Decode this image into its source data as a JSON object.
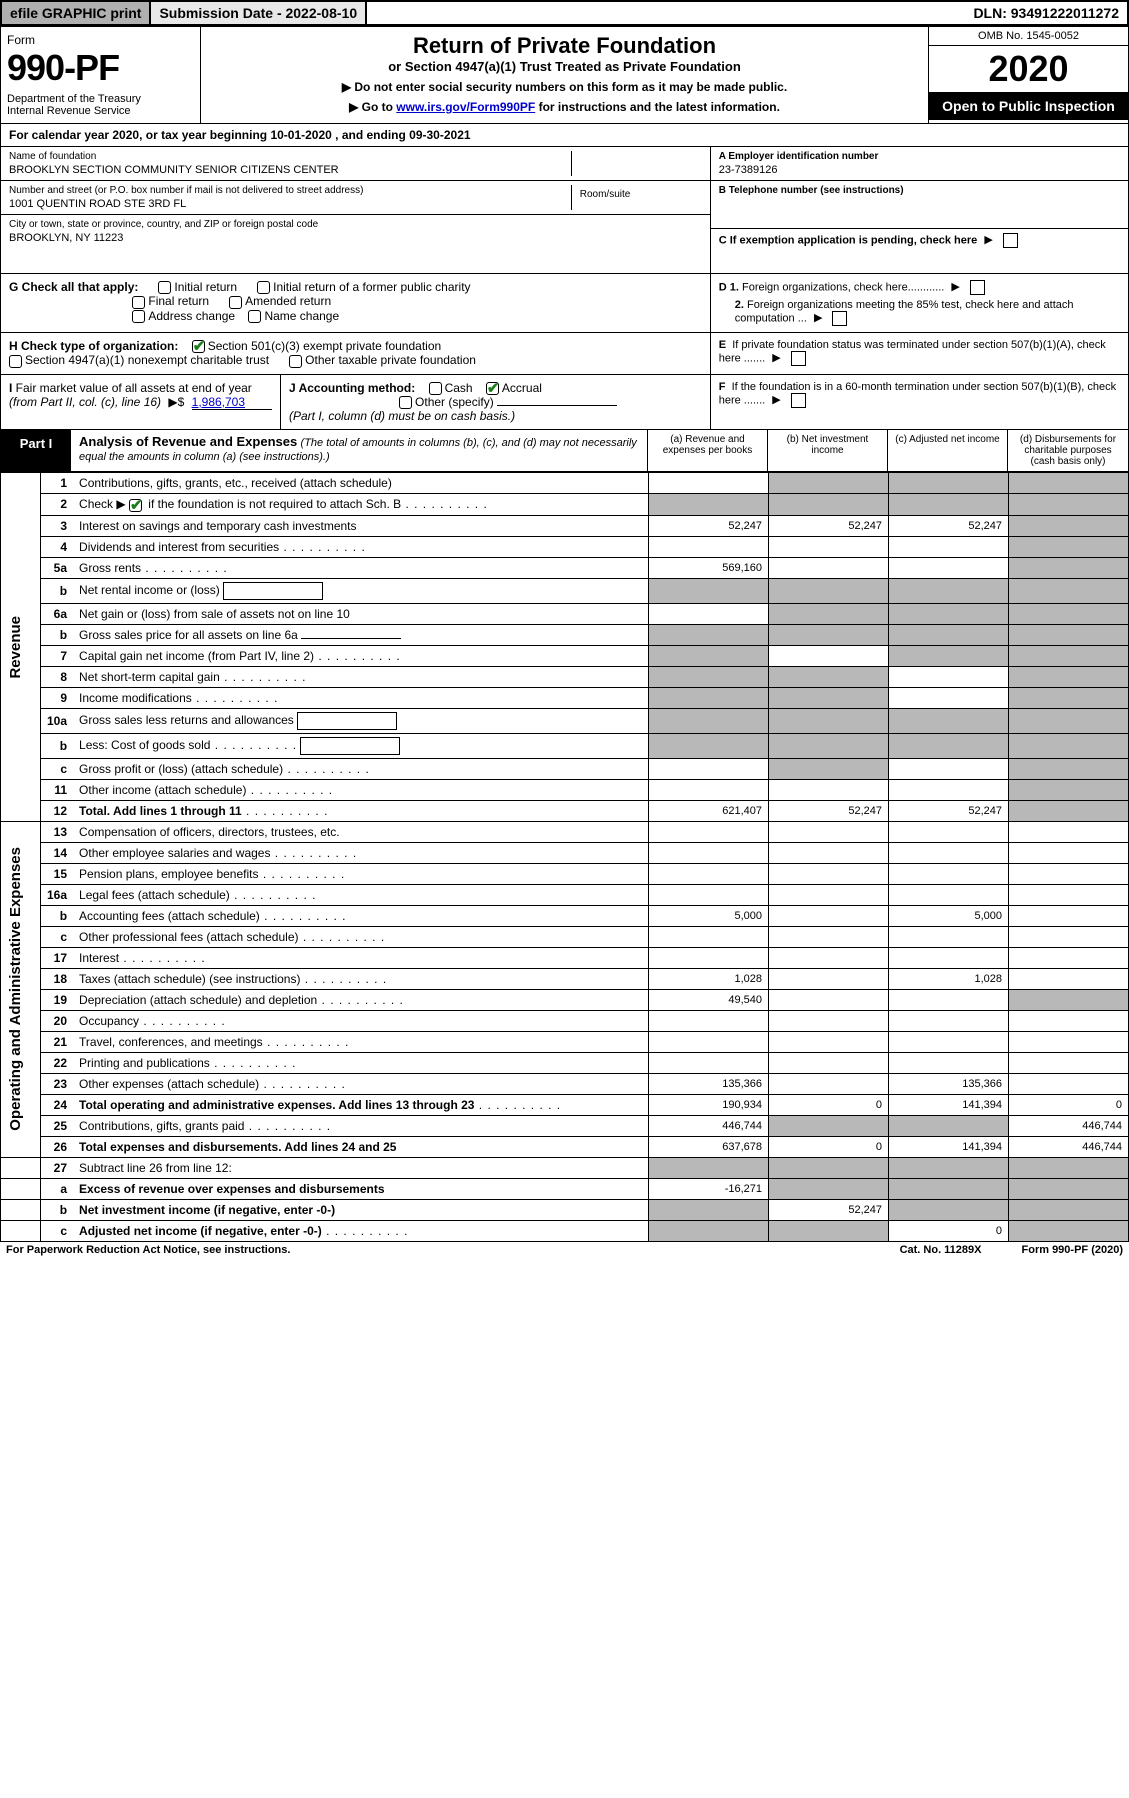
{
  "topbar": {
    "efile": "efile GRAPHIC print",
    "subdate": "Submission Date - 2022-08-10",
    "dln": "DLN: 93491222011272"
  },
  "header": {
    "formword": "Form",
    "formno": "990-PF",
    "dept": "Department of the Treasury\nInternal Revenue Service",
    "title": "Return of Private Foundation",
    "sub1": "or Section 4947(a)(1) Trust Treated as Private Foundation",
    "sub2a": "▶ Do not enter social security numbers on this form as it may be made public.",
    "sub2b": "▶ Go to ",
    "link": "www.irs.gov/Form990PF",
    "sub2c": " for instructions and the latest information.",
    "omb": "OMB No. 1545-0052",
    "year": "2020",
    "open": "Open to Public Inspection"
  },
  "calyear": {
    "text": "For calendar year 2020, or tax year beginning 10-01-2020                          , and ending 09-30-2021"
  },
  "id": {
    "name_lbl": "Name of foundation",
    "name_val": "BROOKLYN SECTION COMMUNITY SENIOR CITIZENS CENTER",
    "addr_lbl": "Number and street (or P.O. box number if mail is not delivered to street address)",
    "addr_val": "1001 QUENTIN ROAD STE 3RD FL",
    "room_lbl": "Room/suite",
    "city_lbl": "City or town, state or province, country, and ZIP or foreign postal code",
    "city_val": "BROOKLYN, NY  11223",
    "ein_lbl": "A Employer identification number",
    "ein_val": "23-7389126",
    "tel_lbl": "B Telephone number (see instructions)",
    "exempt_lbl": "C If exemption application is pending, check here"
  },
  "g": {
    "label": "G Check all that apply:",
    "o1": "Initial return",
    "o2": "Initial return of a former public charity",
    "o3": "Final return",
    "o4": "Amended return",
    "o5": "Address change",
    "o6": "Name change"
  },
  "h": {
    "label": "H Check type of organization:",
    "o1": "Section 501(c)(3) exempt private foundation",
    "o2": "Section 4947(a)(1) nonexempt charitable trust",
    "o3": "Other taxable private foundation"
  },
  "i": {
    "label": "I Fair market value of all assets at end of year (from Part II, col. (c), line 16)",
    "arrow": "▶$",
    "val": "1,986,703"
  },
  "j": {
    "label": "J Accounting method:",
    "cash": "Cash",
    "accrual": "Accrual",
    "other": "Other (specify)",
    "note": "(Part I, column (d) must be on cash basis.)"
  },
  "d": {
    "d1": "D 1. Foreign organizations, check here............",
    "d2": "2. Foreign organizations meeting the 85% test, check here and attach computation ...",
    "e": "E  If private foundation status was terminated under section 507(b)(1)(A), check here .......",
    "f": "F  If the foundation is in a 60-month termination under section 507(b)(1)(B), check here ......."
  },
  "part1": {
    "tab": "Part I",
    "title": "Analysis of Revenue and Expenses",
    "note": "(The total of amounts in columns (b), (c), and (d) may not necessarily equal the amounts in column (a) (see instructions).)",
    "col_a": "(a)    Revenue and expenses per books",
    "col_b": "(b)    Net investment income",
    "col_c": "(c)   Adjusted net income",
    "col_d": "(d)   Disbursements for charitable purposes (cash basis only)"
  },
  "sections": {
    "revenue": "Revenue",
    "opex": "Operating and Administrative Expenses"
  },
  "rows": [
    {
      "sec": "rev",
      "n": "1",
      "d": "Contributions, gifts, grants, etc., received (attach schedule)",
      "a": "",
      "b": "s",
      "c": "s",
      "dd": "s"
    },
    {
      "sec": "rev",
      "n": "2",
      "d": "Check ▶ [x] if the foundation is not required to attach Sch. B",
      "dots": true,
      "a": "s",
      "b": "s",
      "c": "s",
      "dd": "s"
    },
    {
      "sec": "rev",
      "n": "3",
      "d": "Interest on savings and temporary cash investments",
      "a": "52,247",
      "b": "52,247",
      "c": "52,247",
      "dd": "s"
    },
    {
      "sec": "rev",
      "n": "4",
      "d": "Dividends and interest from securities",
      "dots": true,
      "a": "",
      "b": "",
      "c": "",
      "dd": "s"
    },
    {
      "sec": "rev",
      "n": "5a",
      "d": "Gross rents",
      "dots": true,
      "a": "569,160",
      "b": "",
      "c": "",
      "dd": "s"
    },
    {
      "sec": "rev",
      "n": "b",
      "sub": true,
      "d": "Net rental income or (loss)",
      "box": true,
      "a": "s",
      "b": "s",
      "c": "s",
      "dd": "s"
    },
    {
      "sec": "rev",
      "n": "6a",
      "d": "Net gain or (loss) from sale of assets not on line 10",
      "a": "",
      "b": "s",
      "c": "s",
      "dd": "s"
    },
    {
      "sec": "rev",
      "n": "b",
      "sub": true,
      "d": "Gross sales price for all assets on line 6a",
      "ul": true,
      "a": "s",
      "b": "s",
      "c": "s",
      "dd": "s"
    },
    {
      "sec": "rev",
      "n": "7",
      "d": "Capital gain net income (from Part IV, line 2)",
      "dots": true,
      "a": "s",
      "b": "",
      "c": "s",
      "dd": "s"
    },
    {
      "sec": "rev",
      "n": "8",
      "d": "Net short-term capital gain",
      "dots": true,
      "a": "s",
      "b": "s",
      "c": "",
      "dd": "s"
    },
    {
      "sec": "rev",
      "n": "9",
      "d": "Income modifications",
      "dots": true,
      "a": "s",
      "b": "s",
      "c": "",
      "dd": "s"
    },
    {
      "sec": "rev",
      "n": "10a",
      "d": "Gross sales less returns and allowances",
      "box": true,
      "a": "s",
      "b": "s",
      "c": "s",
      "dd": "s"
    },
    {
      "sec": "rev",
      "n": "b",
      "sub": true,
      "d": "Less: Cost of goods sold",
      "dots": true,
      "box": true,
      "a": "s",
      "b": "s",
      "c": "s",
      "dd": "s"
    },
    {
      "sec": "rev",
      "n": "c",
      "sub": true,
      "d": "Gross profit or (loss) (attach schedule)",
      "dots": true,
      "a": "",
      "b": "s",
      "c": "",
      "dd": "s"
    },
    {
      "sec": "rev",
      "n": "11",
      "d": "Other income (attach schedule)",
      "dots": true,
      "a": "",
      "b": "",
      "c": "",
      "dd": "s"
    },
    {
      "sec": "rev",
      "n": "12",
      "d": "Total. Add lines 1 through 11",
      "dots": true,
      "bold": true,
      "a": "621,407",
      "b": "52,247",
      "c": "52,247",
      "dd": "s"
    },
    {
      "sec": "op",
      "n": "13",
      "d": "Compensation of officers, directors, trustees, etc.",
      "a": "",
      "b": "",
      "c": "",
      "dd": ""
    },
    {
      "sec": "op",
      "n": "14",
      "d": "Other employee salaries and wages",
      "dots": true,
      "a": "",
      "b": "",
      "c": "",
      "dd": ""
    },
    {
      "sec": "op",
      "n": "15",
      "d": "Pension plans, employee benefits",
      "dots": true,
      "a": "",
      "b": "",
      "c": "",
      "dd": ""
    },
    {
      "sec": "op",
      "n": "16a",
      "d": "Legal fees (attach schedule)",
      "dots": true,
      "a": "",
      "b": "",
      "c": "",
      "dd": ""
    },
    {
      "sec": "op",
      "n": "b",
      "sub": true,
      "d": "Accounting fees (attach schedule)",
      "dots": true,
      "a": "5,000",
      "b": "",
      "c": "5,000",
      "dd": ""
    },
    {
      "sec": "op",
      "n": "c",
      "sub": true,
      "d": "Other professional fees (attach schedule)",
      "dots": true,
      "a": "",
      "b": "",
      "c": "",
      "dd": ""
    },
    {
      "sec": "op",
      "n": "17",
      "d": "Interest",
      "dots": true,
      "a": "",
      "b": "",
      "c": "",
      "dd": ""
    },
    {
      "sec": "op",
      "n": "18",
      "d": "Taxes (attach schedule) (see instructions)",
      "dots": true,
      "a": "1,028",
      "b": "",
      "c": "1,028",
      "dd": ""
    },
    {
      "sec": "op",
      "n": "19",
      "d": "Depreciation (attach schedule) and depletion",
      "dots": true,
      "a": "49,540",
      "b": "",
      "c": "",
      "dd": "s"
    },
    {
      "sec": "op",
      "n": "20",
      "d": "Occupancy",
      "dots": true,
      "a": "",
      "b": "",
      "c": "",
      "dd": ""
    },
    {
      "sec": "op",
      "n": "21",
      "d": "Travel, conferences, and meetings",
      "dots": true,
      "a": "",
      "b": "",
      "c": "",
      "dd": ""
    },
    {
      "sec": "op",
      "n": "22",
      "d": "Printing and publications",
      "dots": true,
      "a": "",
      "b": "",
      "c": "",
      "dd": ""
    },
    {
      "sec": "op",
      "n": "23",
      "d": "Other expenses (attach schedule)",
      "dots": true,
      "a": "135,366",
      "b": "",
      "c": "135,366",
      "dd": ""
    },
    {
      "sec": "op",
      "n": "24",
      "d": "Total operating and administrative expenses. Add lines 13 through 23",
      "dots": true,
      "bold": true,
      "a": "190,934",
      "b": "0",
      "c": "141,394",
      "dd": "0"
    },
    {
      "sec": "op",
      "n": "25",
      "d": "Contributions, gifts, grants paid",
      "dots": true,
      "a": "446,744",
      "b": "s",
      "c": "s",
      "dd": "446,744"
    },
    {
      "sec": "op",
      "n": "26",
      "d": "Total expenses and disbursements. Add lines 24 and 25",
      "bold": true,
      "a": "637,678",
      "b": "0",
      "c": "141,394",
      "dd": "446,744"
    },
    {
      "sec": "none",
      "n": "27",
      "d": "Subtract line 26 from line 12:",
      "a": "s",
      "b": "s",
      "c": "s",
      "dd": "s"
    },
    {
      "sec": "none",
      "n": "a",
      "sub": true,
      "d": "Excess of revenue over expenses and disbursements",
      "bold": true,
      "a": "-16,271",
      "b": "s",
      "c": "s",
      "dd": "s"
    },
    {
      "sec": "none",
      "n": "b",
      "sub": true,
      "d": "Net investment income (if negative, enter -0-)",
      "bold": true,
      "a": "s",
      "b": "52,247",
      "c": "s",
      "dd": "s"
    },
    {
      "sec": "none",
      "n": "c",
      "sub": true,
      "d": "Adjusted net income (if negative, enter -0-)",
      "bold": true,
      "dots": true,
      "a": "s",
      "b": "s",
      "c": "0",
      "dd": "s"
    }
  ],
  "footer": {
    "left": "For Paperwork Reduction Act Notice, see instructions.",
    "mid": "Cat. No. 11289X",
    "right": "Form 990-PF (2020)"
  },
  "colors": {
    "shade": "#b8b8b8",
    "topgray": "#b0b0b0",
    "link": "#0000cc",
    "check": "#1a7f1a"
  }
}
